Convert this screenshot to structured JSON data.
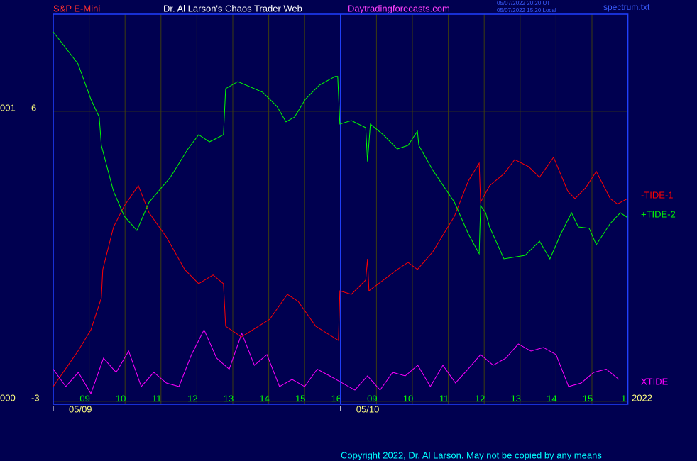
{
  "chart_data": {
    "type": "line",
    "header": {
      "symbol": "S&P E-Mini",
      "title": "Dr. Al Larson's Chaos Trader Web",
      "site": "Daytradingforecasts.com",
      "time_ut": "05/07/2022 20:20 UT",
      "time_local": "05/07/2022 15:20 Local",
      "file": "spectrum.txt"
    },
    "left_labels": [
      {
        "value": 6,
        "label": "001"
      },
      {
        "value": -3,
        "label": "000"
      }
    ],
    "ylim": [
      -3.09,
      9.01
    ],
    "yticks": [
      6,
      -3
    ],
    "xlim": [
      0,
      16
    ],
    "xticks": [
      {
        "value": 1,
        "label": "09"
      },
      {
        "value": 2,
        "label": "10"
      },
      {
        "value": 3,
        "label": "11"
      },
      {
        "value": 4,
        "label": "12"
      },
      {
        "value": 5,
        "label": "13"
      },
      {
        "value": 6,
        "label": "14"
      },
      {
        "value": 7,
        "label": "15"
      },
      {
        "value": 8,
        "label": "16"
      },
      {
        "value": 9,
        "label": "09"
      },
      {
        "value": 10,
        "label": "10"
      },
      {
        "value": 11,
        "label": "11"
      },
      {
        "value": 12,
        "label": "12"
      },
      {
        "value": 13,
        "label": "13"
      },
      {
        "value": 14,
        "label": "14"
      },
      {
        "value": 15,
        "label": "15"
      },
      {
        "value": 16,
        "label": "1"
      }
    ],
    "date_ticks": [
      {
        "value": 0,
        "label": "05/09"
      },
      {
        "value": 8,
        "label": "05/10"
      }
    ],
    "year": "2022",
    "day_break": 8,
    "grid": true,
    "series": [
      {
        "name": "-TIDE-1",
        "color": "#ff0000",
        "x": [
          0,
          0.69,
          1.05,
          1.34,
          1.38,
          1.68,
          1.98,
          2.37,
          2.67,
          3.16,
          3.66,
          4.05,
          4.45,
          4.74,
          4.8,
          5.24,
          6.03,
          6.52,
          6.82,
          7.31,
          7.94,
          7.98,
          8.3,
          8.7,
          8.75,
          8.79,
          9.19,
          9.58,
          9.88,
          10.14,
          10.57,
          11.17,
          11.56,
          11.86,
          11.9,
          12.15,
          12.55,
          12.85,
          13.24,
          13.54,
          13.93,
          14.33,
          14.53,
          14.82,
          15.12,
          15.51,
          15.71,
          15.99
        ],
        "values": [
          -2.54,
          -1.44,
          -0.78,
          0.21,
          1.09,
          2.41,
          3.07,
          3.69,
          2.85,
          2.08,
          1.09,
          0.65,
          0.92,
          0.65,
          -0.67,
          -1.0,
          -0.45,
          0.32,
          0.1,
          -0.67,
          -1.11,
          0.43,
          0.32,
          0.76,
          1.42,
          0.43,
          0.76,
          1.09,
          1.31,
          1.09,
          1.64,
          2.74,
          3.84,
          4.39,
          3.18,
          3.69,
          4.06,
          4.5,
          4.28,
          3.95,
          4.57,
          3.51,
          3.29,
          3.62,
          4.13,
          3.29,
          3.12,
          3.29
        ]
      },
      {
        "name": "+TIDE-2",
        "color": "#00ff00",
        "x": [
          0,
          0.69,
          1.05,
          1.28,
          1.34,
          1.68,
          1.98,
          2.33,
          2.67,
          3.26,
          3.75,
          4.05,
          4.35,
          4.55,
          4.74,
          4.8,
          5.14,
          5.83,
          6.23,
          6.48,
          6.72,
          7.02,
          7.41,
          7.85,
          7.92,
          7.98,
          8.3,
          8.7,
          8.75,
          8.83,
          9.19,
          9.58,
          9.88,
          10.14,
          10.18,
          10.57,
          11.17,
          11.56,
          11.86,
          11.9,
          12.04,
          12.15,
          12.55,
          13.14,
          13.54,
          13.83,
          14.13,
          14.43,
          14.62,
          14.92,
          15.12,
          15.51,
          15.79,
          15.99
        ],
        "values": [
          8.46,
          7.47,
          6.37,
          5.82,
          4.94,
          3.51,
          2.74,
          2.3,
          3.18,
          3.95,
          4.83,
          5.27,
          5.05,
          5.16,
          5.27,
          6.7,
          6.92,
          6.59,
          6.15,
          5.67,
          5.82,
          6.37,
          6.81,
          7.08,
          7.08,
          5.6,
          5.71,
          5.49,
          4.44,
          5.6,
          5.27,
          4.83,
          4.94,
          5.38,
          4.94,
          4.17,
          3.18,
          2.19,
          1.58,
          3.07,
          2.85,
          2.41,
          1.42,
          1.53,
          1.97,
          1.42,
          2.19,
          2.85,
          2.41,
          2.37,
          1.86,
          2.52,
          2.85,
          2.7
        ]
      },
      {
        "name": "XTIDE",
        "color": "#ff00ff",
        "x": [
          0,
          0.35,
          0.7,
          1.05,
          1.4,
          1.75,
          2.1,
          2.45,
          2.8,
          3.15,
          3.5,
          3.85,
          4.2,
          4.55,
          4.9,
          5.25,
          5.6,
          5.95,
          6.3,
          6.65,
          7.0,
          7.35,
          7.7,
          8.05,
          8.4,
          8.75,
          9.1,
          9.45,
          9.8,
          10.15,
          10.5,
          10.85,
          11.2,
          11.55,
          11.9,
          12.25,
          12.6,
          12.95,
          13.3,
          13.65,
          14.0,
          14.35,
          14.7,
          15.05,
          15.4,
          15.75
        ],
        "values": [
          -2.0,
          -2.54,
          -2.1,
          -2.76,
          -1.66,
          -2.1,
          -1.44,
          -2.54,
          -2.1,
          -2.43,
          -2.54,
          -1.55,
          -0.78,
          -1.66,
          -2.0,
          -0.89,
          -1.88,
          -1.55,
          -2.54,
          -2.32,
          -2.54,
          -2.0,
          -2.21,
          -2.43,
          -2.65,
          -2.21,
          -2.65,
          -2.1,
          -2.21,
          -1.88,
          -2.54,
          -1.88,
          -2.43,
          -2.0,
          -1.55,
          -1.88,
          -1.66,
          -1.22,
          -1.44,
          -1.33,
          -1.55,
          -2.54,
          -2.43,
          -2.1,
          -2.0,
          -2.32
        ]
      }
    ],
    "copyright": "Copyright 2022, Dr. Al Larson. May not be copied by any means"
  }
}
